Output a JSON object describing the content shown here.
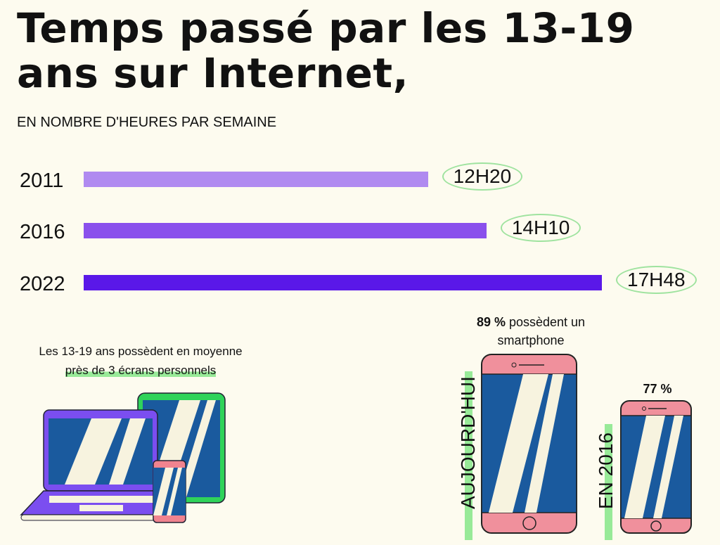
{
  "chart_data": {
    "type": "bar",
    "orientation": "horizontal",
    "title": "Temps passé par les 13-19 ans sur Internet,",
    "subtitle": "EN NOMBRE D'HEURES PAR SEMAINE",
    "categories": [
      "2011",
      "2016",
      "2022"
    ],
    "values": [
      12.33,
      14.17,
      17.8
    ],
    "labels": [
      "12H20",
      "14H10",
      "17H48"
    ],
    "colors": [
      "#b08af0",
      "#8a50ec",
      "#5a18e8"
    ],
    "xlim": [
      1.5,
      17.8
    ],
    "xlabel": "",
    "ylabel": ""
  },
  "screens": {
    "line1": "Les 13-19 ans possèdent en moyenne",
    "line2": "près de 3 écrans personnels"
  },
  "smartphone": {
    "today_pct": "89 %",
    "today_text": " possèdent un",
    "today_text2": "smartphone",
    "today_label": "AUJOURD'HUI",
    "past_pct": "77 %",
    "past_label": "EN 2016"
  }
}
